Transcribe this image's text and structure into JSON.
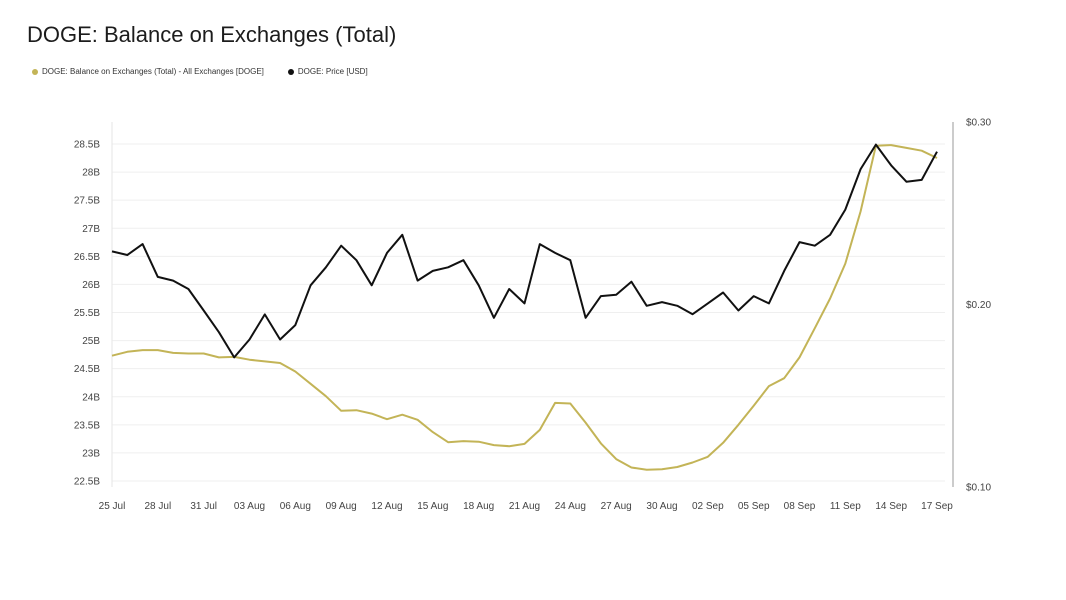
{
  "chart_data": {
    "type": "line",
    "title": "DOGE: Balance on Exchanges (Total)",
    "colors": {
      "balance": "#c3b457",
      "price": "#111111"
    },
    "x_ticks": [
      "25 Jul",
      "28 Jul",
      "31 Jul",
      "03 Aug",
      "06 Aug",
      "09 Aug",
      "12 Aug",
      "15 Aug",
      "18 Aug",
      "21 Aug",
      "24 Aug",
      "27 Aug",
      "30 Aug",
      "02 Sep",
      "05 Sep",
      "08 Sep",
      "11 Sep",
      "14 Sep",
      "17 Sep"
    ],
    "y_left_ticks": [
      "22.5B",
      "23B",
      "23.5B",
      "24B",
      "24.5B",
      "25B",
      "25.5B",
      "26B",
      "26.5B",
      "27B",
      "27.5B",
      "28B",
      "28.5B"
    ],
    "y_right_ticks": [
      "$0.10",
      "$0.20",
      "$0.30"
    ],
    "y_left_range": [
      22.5,
      28.5
    ],
    "y_right_range": [
      0.1,
      0.3
    ],
    "x_start": "25 Jul",
    "series": [
      {
        "name": "DOGE: Balance on Exchanges (Total) - All Exchanges [DOGE]",
        "axis": "left",
        "values": [
          24.73,
          24.8,
          24.83,
          24.83,
          24.78,
          24.77,
          24.77,
          24.7,
          24.71,
          24.66,
          24.63,
          24.6,
          24.45,
          24.23,
          24.01,
          23.75,
          23.76,
          23.7,
          23.6,
          23.68,
          23.59,
          23.37,
          23.19,
          23.21,
          23.2,
          23.14,
          23.12,
          23.16,
          23.41,
          23.89,
          23.88,
          23.54,
          23.17,
          22.89,
          22.74,
          22.7,
          22.71,
          22.75,
          22.83,
          22.93,
          23.18,
          23.5,
          23.84,
          24.19,
          24.33,
          24.7,
          25.22,
          25.75,
          26.37,
          27.3,
          28.47,
          28.48,
          28.43,
          28.38,
          28.25
        ]
      },
      {
        "name": "DOGE: Price [USD]",
        "axis": "right",
        "values": [
          0.2291,
          0.2271,
          0.2331,
          0.2151,
          0.2131,
          0.2085,
          0.1967,
          0.1848,
          0.171,
          0.1808,
          0.1946,
          0.1808,
          0.1887,
          0.2105,
          0.2204,
          0.2322,
          0.2243,
          0.2105,
          0.2283,
          0.2382,
          0.2131,
          0.2184,
          0.2204,
          0.2243,
          0.2105,
          0.1927,
          0.2085,
          0.2006,
          0.2331,
          0.2283,
          0.2243,
          0.1927,
          0.2046,
          0.2053,
          0.2125,
          0.1993,
          0.2013,
          0.1993,
          0.1947,
          0.2006,
          0.2066,
          0.1967,
          0.2046,
          0.2006,
          0.2184,
          0.2342,
          0.2322,
          0.2382,
          0.252,
          0.2742,
          0.2876,
          0.2762,
          0.2673,
          0.2683,
          0.2837
        ]
      }
    ]
  }
}
